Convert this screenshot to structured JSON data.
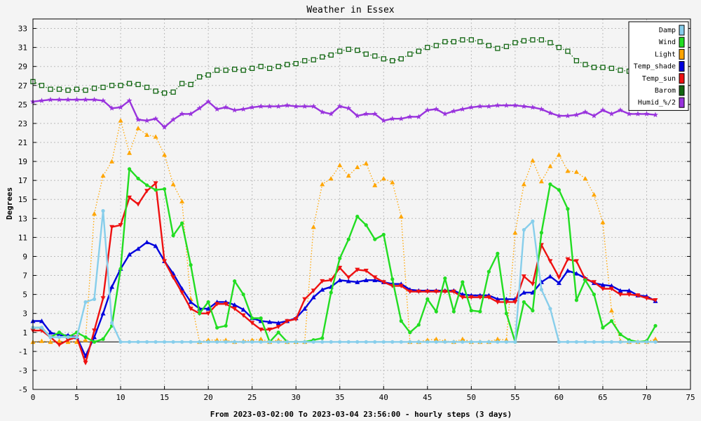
{
  "chart_data": {
    "type": "line",
    "title": "Weather in Essex",
    "xlabel": "From 2023-03-02:00 To 2023-03-04 23:56:00 - hourly steps (3 days)",
    "ylabel": "Degrees",
    "xlim": [
      0,
      75
    ],
    "ylim": [
      -5,
      34
    ],
    "x_ticks": [
      0,
      5,
      10,
      15,
      20,
      25,
      30,
      35,
      40,
      45,
      50,
      55,
      60,
      65,
      70,
      75
    ],
    "y_ticks": [
      -5,
      -3,
      -1,
      1,
      3,
      5,
      7,
      9,
      11,
      13,
      15,
      17,
      19,
      21,
      23,
      25,
      27,
      29,
      31,
      33
    ],
    "grid": true,
    "legend_position": "top-right",
    "series": [
      {
        "name": "Damp",
        "color": "#87ceeb",
        "style": "solid",
        "marker": "dot",
        "values": [
          1.5,
          1.5,
          0.5,
          0.5,
          0.5,
          0.5,
          4.2,
          4.5,
          13.8,
          2,
          0,
          0,
          0,
          0,
          0,
          0,
          0,
          0,
          0,
          0,
          0,
          0,
          0,
          0,
          0,
          0,
          0,
          0,
          0,
          0,
          0,
          0,
          0,
          0,
          0,
          0,
          0,
          0,
          0,
          0,
          0,
          0,
          0,
          0,
          0,
          0,
          0,
          0,
          0,
          0,
          0,
          0,
          0,
          0,
          0,
          0,
          11.8,
          12.7,
          5.5,
          3.5,
          0,
          0,
          0,
          0,
          0,
          0,
          0,
          0,
          0,
          0,
          0,
          0
        ]
      },
      {
        "name": "Wind",
        "color": "#22dd22",
        "style": "solid",
        "marker": "dot",
        "values": [
          1.5,
          1.5,
          0.5,
          1,
          0.5,
          1,
          0.5,
          0,
          0.3,
          1.7,
          7.7,
          18.2,
          17.2,
          16.5,
          16,
          16.1,
          11.2,
          12.5,
          8.1,
          3,
          4.2,
          1.5,
          1.7,
          6.4,
          5,
          2.5,
          2.5,
          0,
          1,
          0,
          0,
          0,
          0.2,
          0.4,
          5.2,
          8.8,
          10.8,
          13.2,
          12.3,
          10.8,
          11.3,
          6.6,
          2.2,
          1,
          1.8,
          4.5,
          3.2,
          6.7,
          3.2,
          6.3,
          3.3,
          3.2,
          7.4,
          9.3,
          3,
          0,
          4.2,
          3.3,
          11.5,
          16.6,
          16,
          14,
          4.4,
          6.5,
          5,
          1.5,
          2.2,
          0.8,
          0.2,
          0,
          0.1,
          1.7
        ]
      },
      {
        "name": "Light",
        "color": "#ffa500",
        "style": "dotted",
        "marker": "triangle-up",
        "values": [
          0,
          0.1,
          0,
          0.1,
          0,
          0,
          0.2,
          13.5,
          17.5,
          19,
          23.3,
          19.9,
          22.5,
          21.8,
          21.6,
          19.7,
          16.6,
          14.8,
          4.5,
          0,
          0.2,
          0.2,
          0.2,
          0,
          0.1,
          0.2,
          0.3,
          0,
          0.2,
          0,
          0,
          0,
          12.1,
          16.6,
          17.2,
          18.6,
          17.5,
          18.4,
          18.8,
          16.5,
          17.2,
          16.8,
          13.2,
          0,
          0,
          0.2,
          0.3,
          0.1,
          0,
          0.3,
          0,
          0,
          0,
          0.3,
          0.2,
          11.5,
          16.6,
          19.1,
          16.9,
          18.5,
          19.7,
          18,
          17.9,
          17.2,
          15.5,
          12.6,
          3.3,
          0.1,
          0,
          0,
          0,
          0.3
        ]
      },
      {
        "name": "Temp_shade",
        "color": "#0000dd",
        "style": "solid",
        "marker": "triangle-up",
        "values": [
          2.2,
          2.2,
          1,
          0.7,
          0.7,
          0.5,
          -1.5,
          0.5,
          3,
          5.8,
          7.7,
          9.2,
          9.8,
          10.5,
          10.1,
          8.5,
          7.2,
          5.6,
          4.2,
          3.5,
          3.5,
          4.2,
          4.2,
          3.9,
          3.4,
          2.5,
          2.2,
          2.1,
          2,
          2.2,
          2.5,
          3.5,
          4.7,
          5.5,
          5.8,
          6.5,
          6.4,
          6.3,
          6.5,
          6.5,
          6.3,
          6.1,
          6.1,
          5.5,
          5.4,
          5.4,
          5.4,
          5.4,
          5.4,
          5,
          4.9,
          4.9,
          4.9,
          4.5,
          4.5,
          4.5,
          5.2,
          5.2,
          6.3,
          6.9,
          6.2,
          7.5,
          7.2,
          6.7,
          6.2,
          6,
          5.9,
          5.4,
          5.4,
          4.9,
          4.8,
          4.3
        ]
      },
      {
        "name": "Temp_sun",
        "color": "#ee1111",
        "style": "solid",
        "marker": "triangle-down",
        "values": [
          1.2,
          1.2,
          0.5,
          -0.3,
          0.2,
          0.5,
          -2.2,
          1.2,
          4.6,
          12.1,
          12.3,
          15.2,
          14.5,
          15.9,
          16.7,
          8.5,
          6.8,
          5.2,
          3.5,
          3,
          3,
          4,
          4,
          3.5,
          2.8,
          2,
          1.3,
          1.3,
          1.6,
          2.2,
          2.4,
          4.5,
          5.4,
          6.4,
          6.5,
          7.8,
          6.8,
          7.6,
          7.5,
          6.8,
          6.3,
          5.9,
          5.9,
          5.3,
          5.3,
          5.3,
          5.3,
          5.3,
          5.3,
          4.7,
          4.7,
          4.7,
          4.7,
          4.2,
          4.2,
          4.2,
          6.9,
          6.1,
          10.2,
          8.5,
          6.8,
          8.7,
          8.5,
          6.6,
          6.3,
          5.6,
          5.6,
          5,
          5,
          4.9,
          4.6,
          4.4
        ]
      },
      {
        "name": "Barom",
        "color": "#116611",
        "style": "dotted",
        "marker": "square",
        "values": [
          27.4,
          27,
          26.6,
          26.6,
          26.5,
          26.6,
          26.5,
          26.7,
          26.8,
          27,
          27,
          27.2,
          27.1,
          26.8,
          26.4,
          26.2,
          26.3,
          27.2,
          27.1,
          27.9,
          28.1,
          28.6,
          28.6,
          28.7,
          28.6,
          28.8,
          29,
          28.8,
          29,
          29.2,
          29.3,
          29.6,
          29.7,
          30,
          30.2,
          30.6,
          30.8,
          30.7,
          30.3,
          30.1,
          29.8,
          29.6,
          29.8,
          30.3,
          30.6,
          31,
          31.2,
          31.6,
          31.6,
          31.8,
          31.8,
          31.6,
          31.2,
          30.9,
          31.1,
          31.5,
          31.7,
          31.8,
          31.8,
          31.5,
          31,
          30.6,
          29.6,
          29.2,
          28.9,
          28.9,
          28.8,
          28.6,
          28.5,
          28.4,
          28.2,
          28.1
        ]
      },
      {
        "name": "Humid_%/2",
        "color": "#9933dd",
        "style": "solid",
        "marker": "star",
        "values": [
          25.3,
          25.4,
          25.5,
          25.5,
          25.5,
          25.5,
          25.5,
          25.5,
          25.4,
          24.6,
          24.7,
          25.4,
          23.4,
          23.3,
          23.5,
          22.6,
          23.4,
          24,
          24,
          24.6,
          25.3,
          24.5,
          24.7,
          24.4,
          24.5,
          24.7,
          24.8,
          24.8,
          24.8,
          24.9,
          24.8,
          24.8,
          24.8,
          24.2,
          24,
          24.8,
          24.6,
          23.8,
          24,
          24,
          23.3,
          23.5,
          23.5,
          23.7,
          23.7,
          24.4,
          24.5,
          24,
          24.3,
          24.5,
          24.7,
          24.8,
          24.8,
          24.9,
          24.9,
          24.9,
          24.8,
          24.7,
          24.5,
          24.1,
          23.8,
          23.8,
          23.9,
          24.2,
          23.8,
          24.4,
          24,
          24.4,
          24,
          24,
          24,
          23.9
        ]
      }
    ]
  }
}
